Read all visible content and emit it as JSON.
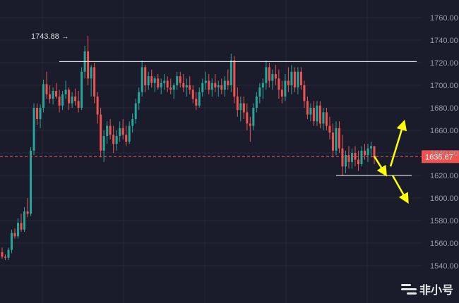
{
  "colors": {
    "background": "#1a1c2b",
    "grid": "#262838",
    "up": "#26a69a",
    "down": "#ef5350",
    "arrow": "#ffff00",
    "level_line": "#ffffff",
    "price_line": "#ef5350",
    "axis_text": "#9a9cab"
  },
  "watermark": {
    "text": "非小号",
    "icon": "feixiaohao-logo-icon"
  },
  "chart_data": {
    "type": "candlestick",
    "title": "",
    "xlabel": "",
    "ylabel": "",
    "ylim": [
      1525,
      1770
    ],
    "y_ticks": [
      "1760.00",
      "1740.00",
      "1720.00",
      "1700.00",
      "1680.00",
      "1660.00",
      "1640.00",
      "1620.00",
      "1600.00",
      "1580.00",
      "1560.00",
      "1540.00"
    ],
    "y_tick_values": [
      1760,
      1740,
      1720,
      1700,
      1680,
      1660,
      1640,
      1620,
      1600,
      1580,
      1560,
      1540
    ],
    "grid": true,
    "high_marker": {
      "label": "1743.88 →",
      "value": 1743.88
    },
    "current_price": {
      "label": "1636.67",
      "value": 1636.67
    },
    "resistance_level": 1721,
    "support_level": 1620,
    "projection_arrows": [
      {
        "direction": "down",
        "from": 1637,
        "to": 1623
      },
      {
        "direction": "up",
        "from": 1628,
        "to": 1665
      },
      {
        "direction": "down",
        "from": 1620,
        "to": 1599
      }
    ],
    "candles": [
      [
        1552,
        1556,
        1546,
        1548
      ],
      [
        1548,
        1550,
        1545,
        1547
      ],
      [
        1547,
        1556,
        1545,
        1554
      ],
      [
        1554,
        1572,
        1551,
        1569
      ],
      [
        1569,
        1573,
        1564,
        1566
      ],
      [
        1566,
        1582,
        1564,
        1578
      ],
      [
        1578,
        1586,
        1570,
        1572
      ],
      [
        1572,
        1592,
        1570,
        1588
      ],
      [
        1588,
        1600,
        1583,
        1586
      ],
      [
        1586,
        1645,
        1584,
        1642
      ],
      [
        1642,
        1684,
        1638,
        1680
      ],
      [
        1680,
        1684,
        1665,
        1670
      ],
      [
        1670,
        1683,
        1662,
        1680
      ],
      [
        1680,
        1705,
        1676,
        1701
      ],
      [
        1701,
        1712,
        1688,
        1692
      ],
      [
        1692,
        1700,
        1684,
        1688
      ],
      [
        1688,
        1698,
        1683,
        1695
      ],
      [
        1695,
        1702,
        1688,
        1690
      ],
      [
        1690,
        1696,
        1676,
        1682
      ],
      [
        1682,
        1695,
        1678,
        1692
      ],
      [
        1692,
        1704,
        1688,
        1696
      ],
      [
        1696,
        1698,
        1678,
        1684
      ],
      [
        1684,
        1694,
        1680,
        1690
      ],
      [
        1690,
        1697,
        1682,
        1686
      ],
      [
        1686,
        1695,
        1676,
        1680
      ],
      [
        1680,
        1716,
        1678,
        1712
      ],
      [
        1712,
        1735,
        1706,
        1730
      ],
      [
        1730,
        1744,
        1700,
        1706
      ],
      [
        1706,
        1718,
        1690,
        1716
      ],
      [
        1716,
        1720,
        1684,
        1690
      ],
      [
        1690,
        1694,
        1666,
        1674
      ],
      [
        1674,
        1680,
        1636,
        1642
      ],
      [
        1642,
        1660,
        1632,
        1655
      ],
      [
        1655,
        1668,
        1648,
        1664
      ],
      [
        1664,
        1670,
        1652,
        1656
      ],
      [
        1656,
        1664,
        1640,
        1648
      ],
      [
        1648,
        1660,
        1642,
        1655
      ],
      [
        1655,
        1668,
        1650,
        1662
      ],
      [
        1662,
        1670,
        1652,
        1656
      ],
      [
        1656,
        1664,
        1646,
        1650
      ],
      [
        1650,
        1668,
        1648,
        1664
      ],
      [
        1664,
        1675,
        1658,
        1670
      ],
      [
        1670,
        1688,
        1666,
        1684
      ],
      [
        1684,
        1698,
        1678,
        1694
      ],
      [
        1694,
        1722,
        1690,
        1716
      ],
      [
        1716,
        1718,
        1694,
        1700
      ],
      [
        1700,
        1712,
        1696,
        1708
      ],
      [
        1708,
        1714,
        1698,
        1702
      ],
      [
        1702,
        1708,
        1694,
        1706
      ],
      [
        1706,
        1710,
        1696,
        1698
      ],
      [
        1698,
        1706,
        1692,
        1702
      ],
      [
        1702,
        1710,
        1696,
        1704
      ],
      [
        1704,
        1708,
        1694,
        1698
      ],
      [
        1698,
        1706,
        1692,
        1696
      ],
      [
        1696,
        1702,
        1688,
        1700
      ],
      [
        1700,
        1712,
        1696,
        1708
      ],
      [
        1708,
        1712,
        1698,
        1702
      ],
      [
        1702,
        1710,
        1694,
        1698
      ],
      [
        1698,
        1706,
        1690,
        1700
      ],
      [
        1700,
        1708,
        1692,
        1696
      ],
      [
        1696,
        1700,
        1684,
        1688
      ],
      [
        1688,
        1694,
        1678,
        1682
      ],
      [
        1682,
        1698,
        1680,
        1694
      ],
      [
        1694,
        1706,
        1690,
        1702
      ],
      [
        1702,
        1712,
        1696,
        1704
      ],
      [
        1704,
        1710,
        1692,
        1696
      ],
      [
        1696,
        1706,
        1690,
        1702
      ],
      [
        1702,
        1710,
        1694,
        1698
      ],
      [
        1698,
        1704,
        1690,
        1700
      ],
      [
        1700,
        1706,
        1692,
        1696
      ],
      [
        1696,
        1708,
        1690,
        1704
      ],
      [
        1704,
        1714,
        1696,
        1700
      ],
      [
        1700,
        1728,
        1694,
        1722
      ],
      [
        1722,
        1726,
        1684,
        1690
      ],
      [
        1690,
        1698,
        1672,
        1678
      ],
      [
        1678,
        1690,
        1668,
        1684
      ],
      [
        1684,
        1690,
        1670,
        1676
      ],
      [
        1676,
        1684,
        1660,
        1666
      ],
      [
        1666,
        1672,
        1650,
        1664
      ],
      [
        1664,
        1684,
        1660,
        1680
      ],
      [
        1680,
        1694,
        1676,
        1690
      ],
      [
        1690,
        1702,
        1684,
        1698
      ],
      [
        1698,
        1706,
        1688,
        1702
      ],
      [
        1702,
        1722,
        1696,
        1716
      ],
      [
        1716,
        1720,
        1698,
        1704
      ],
      [
        1704,
        1714,
        1696,
        1710
      ],
      [
        1710,
        1718,
        1700,
        1706
      ],
      [
        1706,
        1714,
        1688,
        1696
      ],
      [
        1696,
        1704,
        1684,
        1690
      ],
      [
        1690,
        1710,
        1686,
        1704
      ],
      [
        1704,
        1716,
        1694,
        1700
      ],
      [
        1700,
        1718,
        1692,
        1712
      ],
      [
        1712,
        1716,
        1694,
        1698
      ],
      [
        1698,
        1716,
        1692,
        1712
      ],
      [
        1712,
        1716,
        1696,
        1700
      ],
      [
        1700,
        1704,
        1680,
        1686
      ],
      [
        1686,
        1690,
        1670,
        1674
      ],
      [
        1674,
        1684,
        1668,
        1680
      ],
      [
        1680,
        1686,
        1664,
        1668
      ],
      [
        1668,
        1686,
        1664,
        1682
      ],
      [
        1682,
        1686,
        1662,
        1666
      ],
      [
        1666,
        1680,
        1660,
        1676
      ],
      [
        1676,
        1680,
        1660,
        1664
      ],
      [
        1664,
        1672,
        1652,
        1658
      ],
      [
        1658,
        1666,
        1636,
        1642
      ],
      [
        1642,
        1668,
        1638,
        1662
      ],
      [
        1662,
        1668,
        1640,
        1644
      ],
      [
        1644,
        1656,
        1620,
        1628
      ],
      [
        1628,
        1642,
        1622,
        1638
      ],
      [
        1638,
        1646,
        1626,
        1632
      ],
      [
        1632,
        1644,
        1626,
        1640
      ],
      [
        1640,
        1646,
        1628,
        1634
      ],
      [
        1634,
        1642,
        1624,
        1630
      ],
      [
        1630,
        1646,
        1628,
        1642
      ],
      [
        1642,
        1648,
        1634,
        1638
      ],
      [
        1638,
        1648,
        1632,
        1644
      ],
      [
        1644,
        1650,
        1636,
        1646
      ],
      [
        1646,
        1646,
        1630,
        1636
      ]
    ]
  }
}
